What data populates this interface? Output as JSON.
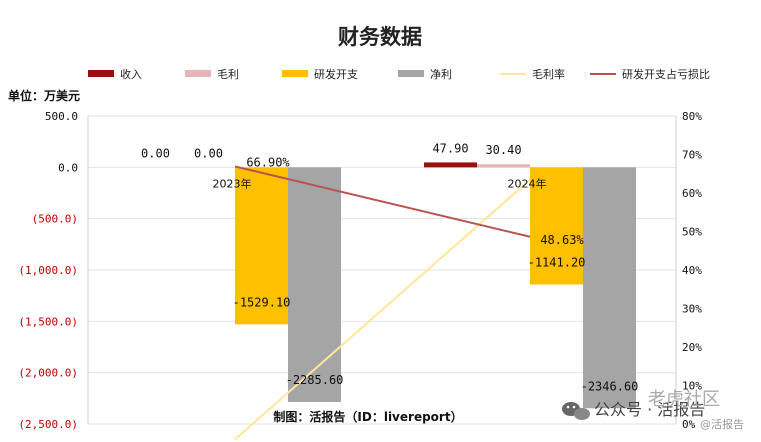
{
  "chart_data": {
    "type": "bar",
    "title": "财务数据",
    "unit_label": "单位：万美元",
    "categories": [
      "2023年",
      "2024年"
    ],
    "series": [
      {
        "name": "收入",
        "kind": "bar",
        "axis": "left",
        "color": "#9b0e0e",
        "values": [
          0.0,
          47.9
        ],
        "labels": [
          "0.00",
          "47.90"
        ]
      },
      {
        "name": "毛利",
        "kind": "bar",
        "axis": "left",
        "color": "#e8b4b8",
        "values": [
          0.0,
          30.4
        ],
        "labels": [
          "0.00",
          "30.40"
        ]
      },
      {
        "name": "研发开支",
        "kind": "bar",
        "axis": "left",
        "color": "#ffc000",
        "values": [
          -1529.1,
          -1141.2
        ],
        "labels": [
          "-1529.10",
          "-1141.20"
        ]
      },
      {
        "name": "净利",
        "kind": "bar",
        "axis": "left",
        "color": "#a5a5a5",
        "values": [
          -2285.6,
          -2346.6
        ],
        "labels": [
          "-2285.60",
          "-2346.60"
        ]
      },
      {
        "name": "毛利率",
        "kind": "line",
        "axis": "right",
        "color": "#ffe699",
        "values": [
          null,
          63.47
        ],
        "labels": []
      },
      {
        "name": "研发开支占亏损比",
        "kind": "line",
        "axis": "right",
        "color": "#b85450",
        "values": [
          66.9,
          48.63
        ],
        "labels": [
          "66.90%",
          "48.63%"
        ]
      }
    ],
    "y_left": {
      "min": -2500,
      "max": 500,
      "step": 500,
      "tick_labels": [
        "500.0",
        "0.0",
        "(500.0)",
        "(1,000.0)",
        "(1,500.0)",
        "(2,000.0)",
        "(2,500.0)"
      ],
      "negative_color": "#c00000"
    },
    "y_right": {
      "min": 0,
      "max": 80,
      "step": 10,
      "tick_labels": [
        "80%",
        "70%",
        "60%",
        "50%",
        "40%",
        "30%",
        "20%",
        "10%",
        "0%"
      ]
    },
    "grid": true,
    "legend_position": "top"
  },
  "footer": {
    "credit": "制图：活报告（ID：livereport）"
  },
  "watermark": {
    "channel": "公众号 · 活报告",
    "community": "老虎社区",
    "handle": "@活报告",
    "icon": "wechat-icon"
  }
}
